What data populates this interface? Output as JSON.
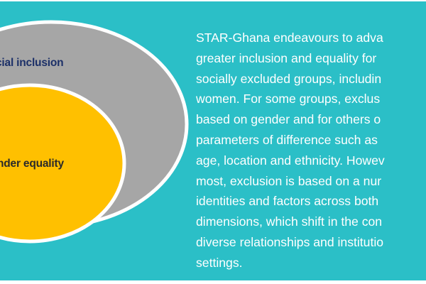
{
  "diagram": {
    "outer_circle_label": "cial inclusion",
    "inner_circle_label": "nder equality",
    "colors": {
      "background": "#2bbfc7",
      "outer_circle": "#a6a6a6",
      "inner_circle": "#ffc000",
      "outline": "#ffffff",
      "outer_label": "#1c3068",
      "inner_label": "#2a2a2a"
    }
  },
  "content": {
    "paragraph": "STAR-Ghana endeavours to adva\ngreater inclusion and equality for\nsocially excluded groups, includin\nwomen. For some groups, exclus\nbased on gender and for others o\nparameters of difference such as\nage, location and ethnicity. Howev\nmost, exclusion is based on a nur\nidentities and factors across both\ndimensions, which shift in the con\ndiverse relationships and institutio\nsettings."
  }
}
